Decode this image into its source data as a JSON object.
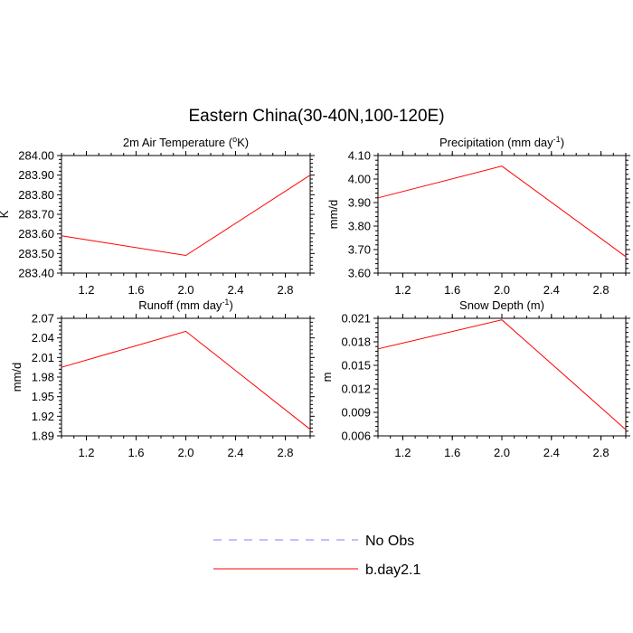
{
  "figure": {
    "title": "Eastern China(30-40N,100-120E)"
  },
  "legend": {
    "entries": [
      {
        "label": "No Obs",
        "color": "#7f7fff",
        "style": "dashed"
      },
      {
        "label": "b.day2.1",
        "color": "#ff0000",
        "style": "solid"
      }
    ]
  },
  "chart_data": [
    {
      "type": "line",
      "title": "2m Air Temperature (°K)",
      "title_main": "2m Air Temperature (",
      "title_sup": "o",
      "title_tail": "K)",
      "xlabel": "",
      "ylabel": "K",
      "xlim": [
        1.0,
        3.0
      ],
      "ylim": [
        283.4,
        284.0
      ],
      "xticks": [
        "1.2",
        "1.6",
        "2.0",
        "2.4",
        "2.8"
      ],
      "yticks": [
        "283.40",
        "283.50",
        "283.60",
        "283.70",
        "283.80",
        "283.90",
        "284.00"
      ],
      "series": [
        {
          "name": "b.day2.1",
          "color": "#ff0000",
          "x": [
            1.0,
            2.0,
            3.0
          ],
          "y": [
            283.59,
            283.49,
            283.9
          ]
        }
      ]
    },
    {
      "type": "line",
      "title": "Precipitation (mm day-1)",
      "title_main": "Precipitation (mm day",
      "title_sup": "-1",
      "title_tail": ")",
      "xlabel": "",
      "ylabel": "mm/d",
      "xlim": [
        1.0,
        3.0
      ],
      "ylim": [
        3.6,
        4.1
      ],
      "xticks": [
        "1.2",
        "1.6",
        "2.0",
        "2.4",
        "2.8"
      ],
      "yticks": [
        "3.60",
        "3.70",
        "3.80",
        "3.90",
        "4.00",
        "4.10"
      ],
      "series": [
        {
          "name": "b.day2.1",
          "color": "#ff0000",
          "x": [
            1.0,
            2.0,
            3.0
          ],
          "y": [
            3.92,
            4.055,
            3.67
          ]
        }
      ]
    },
    {
      "type": "line",
      "title": "Runoff (mm day-1)",
      "title_main": "Runoff (mm day",
      "title_sup": "-1",
      "title_tail": ")",
      "xlabel": "",
      "ylabel": "mm/d",
      "xlim": [
        1.0,
        3.0
      ],
      "ylim": [
        1.89,
        2.07
      ],
      "xticks": [
        "1.2",
        "1.6",
        "2.0",
        "2.4",
        "2.8"
      ],
      "yticks": [
        "1.89",
        "1.92",
        "1.95",
        "1.98",
        "2.01",
        "2.04",
        "2.07"
      ],
      "series": [
        {
          "name": "b.day2.1",
          "color": "#ff0000",
          "x": [
            1.0,
            2.0,
            3.0
          ],
          "y": [
            1.995,
            2.05,
            1.9
          ]
        }
      ]
    },
    {
      "type": "line",
      "title": "Snow Depth (m)",
      "title_main": "Snow Depth (m)",
      "title_sup": "",
      "title_tail": "",
      "xlabel": "",
      "ylabel": "m",
      "xlim": [
        1.0,
        3.0
      ],
      "ylim": [
        0.006,
        0.021
      ],
      "xticks": [
        "1.2",
        "1.6",
        "2.0",
        "2.4",
        "2.8"
      ],
      "yticks": [
        "0.006",
        "0.009",
        "0.012",
        "0.015",
        "0.018",
        "0.021"
      ],
      "series": [
        {
          "name": "b.day2.1",
          "color": "#ff0000",
          "x": [
            1.0,
            2.0,
            3.0
          ],
          "y": [
            0.0171,
            0.0208,
            0.0068
          ]
        }
      ]
    }
  ]
}
